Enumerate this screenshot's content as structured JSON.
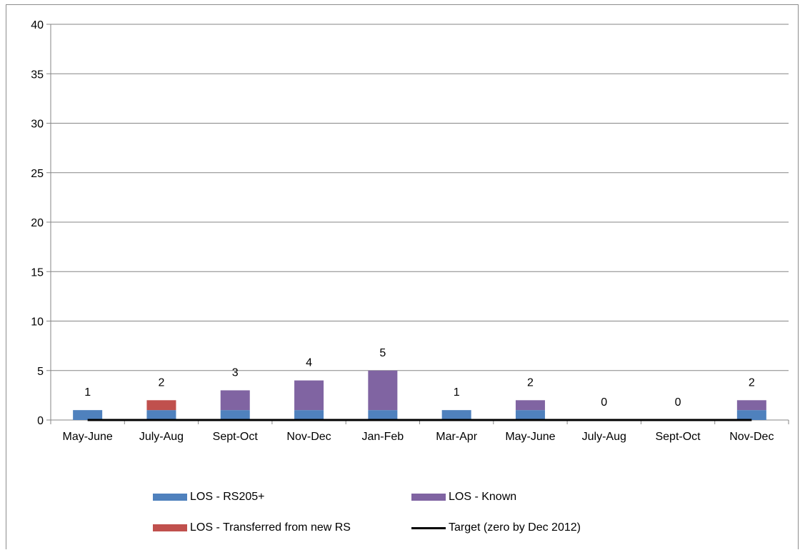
{
  "chart_data": {
    "type": "bar",
    "stacked": true,
    "categories": [
      "May-June",
      "July-Aug",
      "Sept-Oct",
      "Nov-Dec",
      "Jan-Feb",
      "Mar-Apr",
      "May-June",
      "July-Aug",
      "Sept-Oct",
      "Nov-Dec"
    ],
    "series": [
      {
        "name": "LOS - RS205+",
        "color": "#4f81bd",
        "values": [
          1,
          1,
          1,
          1,
          1,
          1,
          1,
          0,
          0,
          1
        ]
      },
      {
        "name": "LOS - Transferred from new RS",
        "color": "#c0504d",
        "values": [
          0,
          1,
          0,
          0,
          0,
          0,
          0,
          0,
          0,
          0
        ]
      },
      {
        "name": "LOS - Known",
        "color": "#8064a2",
        "values": [
          0,
          0,
          2,
          3,
          4,
          0,
          1,
          0,
          0,
          1
        ]
      }
    ],
    "line_series": {
      "name": "Target (zero by Dec 2012)",
      "color": "#000000",
      "values": [
        0,
        0,
        0,
        0,
        0,
        0,
        0,
        0,
        0,
        0
      ]
    },
    "totals": [
      "1",
      "2",
      "3",
      "4",
      "5",
      "1",
      "2",
      "0",
      "0",
      "2"
    ],
    "ylim": [
      0,
      40
    ],
    "yticks": [
      "0",
      "5",
      "10",
      "15",
      "20",
      "25",
      "30",
      "35",
      "40"
    ],
    "grid": true,
    "legend_position": "bottom"
  }
}
